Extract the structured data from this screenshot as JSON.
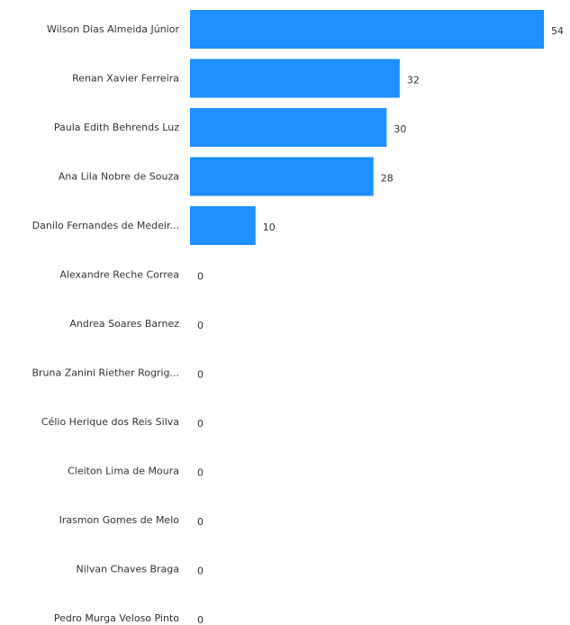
{
  "chart_data": {
    "type": "bar",
    "orientation": "horizontal",
    "categories": [
      "Wilson Dias Almeida Júnior",
      "Renan Xavier Ferreira",
      "Paula Edith Behrends Luz",
      "Ana Lila Nobre de Souza",
      "Danilo Fernandes de Medeir...",
      "Alexandre Reche Correa",
      "Andrea Soares Barnez",
      "Bruna Zanini Riether Rogrig...",
      "Célio Herique dos Reis Silva",
      "Cleiton Lima de Moura",
      "Irasmon Gomes de Melo",
      "Nilvan Chaves Braga",
      "Pedro Murga Veloso Pinto"
    ],
    "values": [
      54,
      32,
      30,
      28,
      10,
      0,
      0,
      0,
      0,
      0,
      0,
      0,
      0
    ],
    "value_labels": [
      "54",
      "32",
      "30",
      "28",
      "10",
      "0",
      "0",
      "0",
      "0",
      "0",
      "0",
      "0",
      "0"
    ],
    "bar_color": "#1e90ff",
    "grid": false,
    "legend": "none",
    "xlim": [
      0,
      54
    ]
  }
}
